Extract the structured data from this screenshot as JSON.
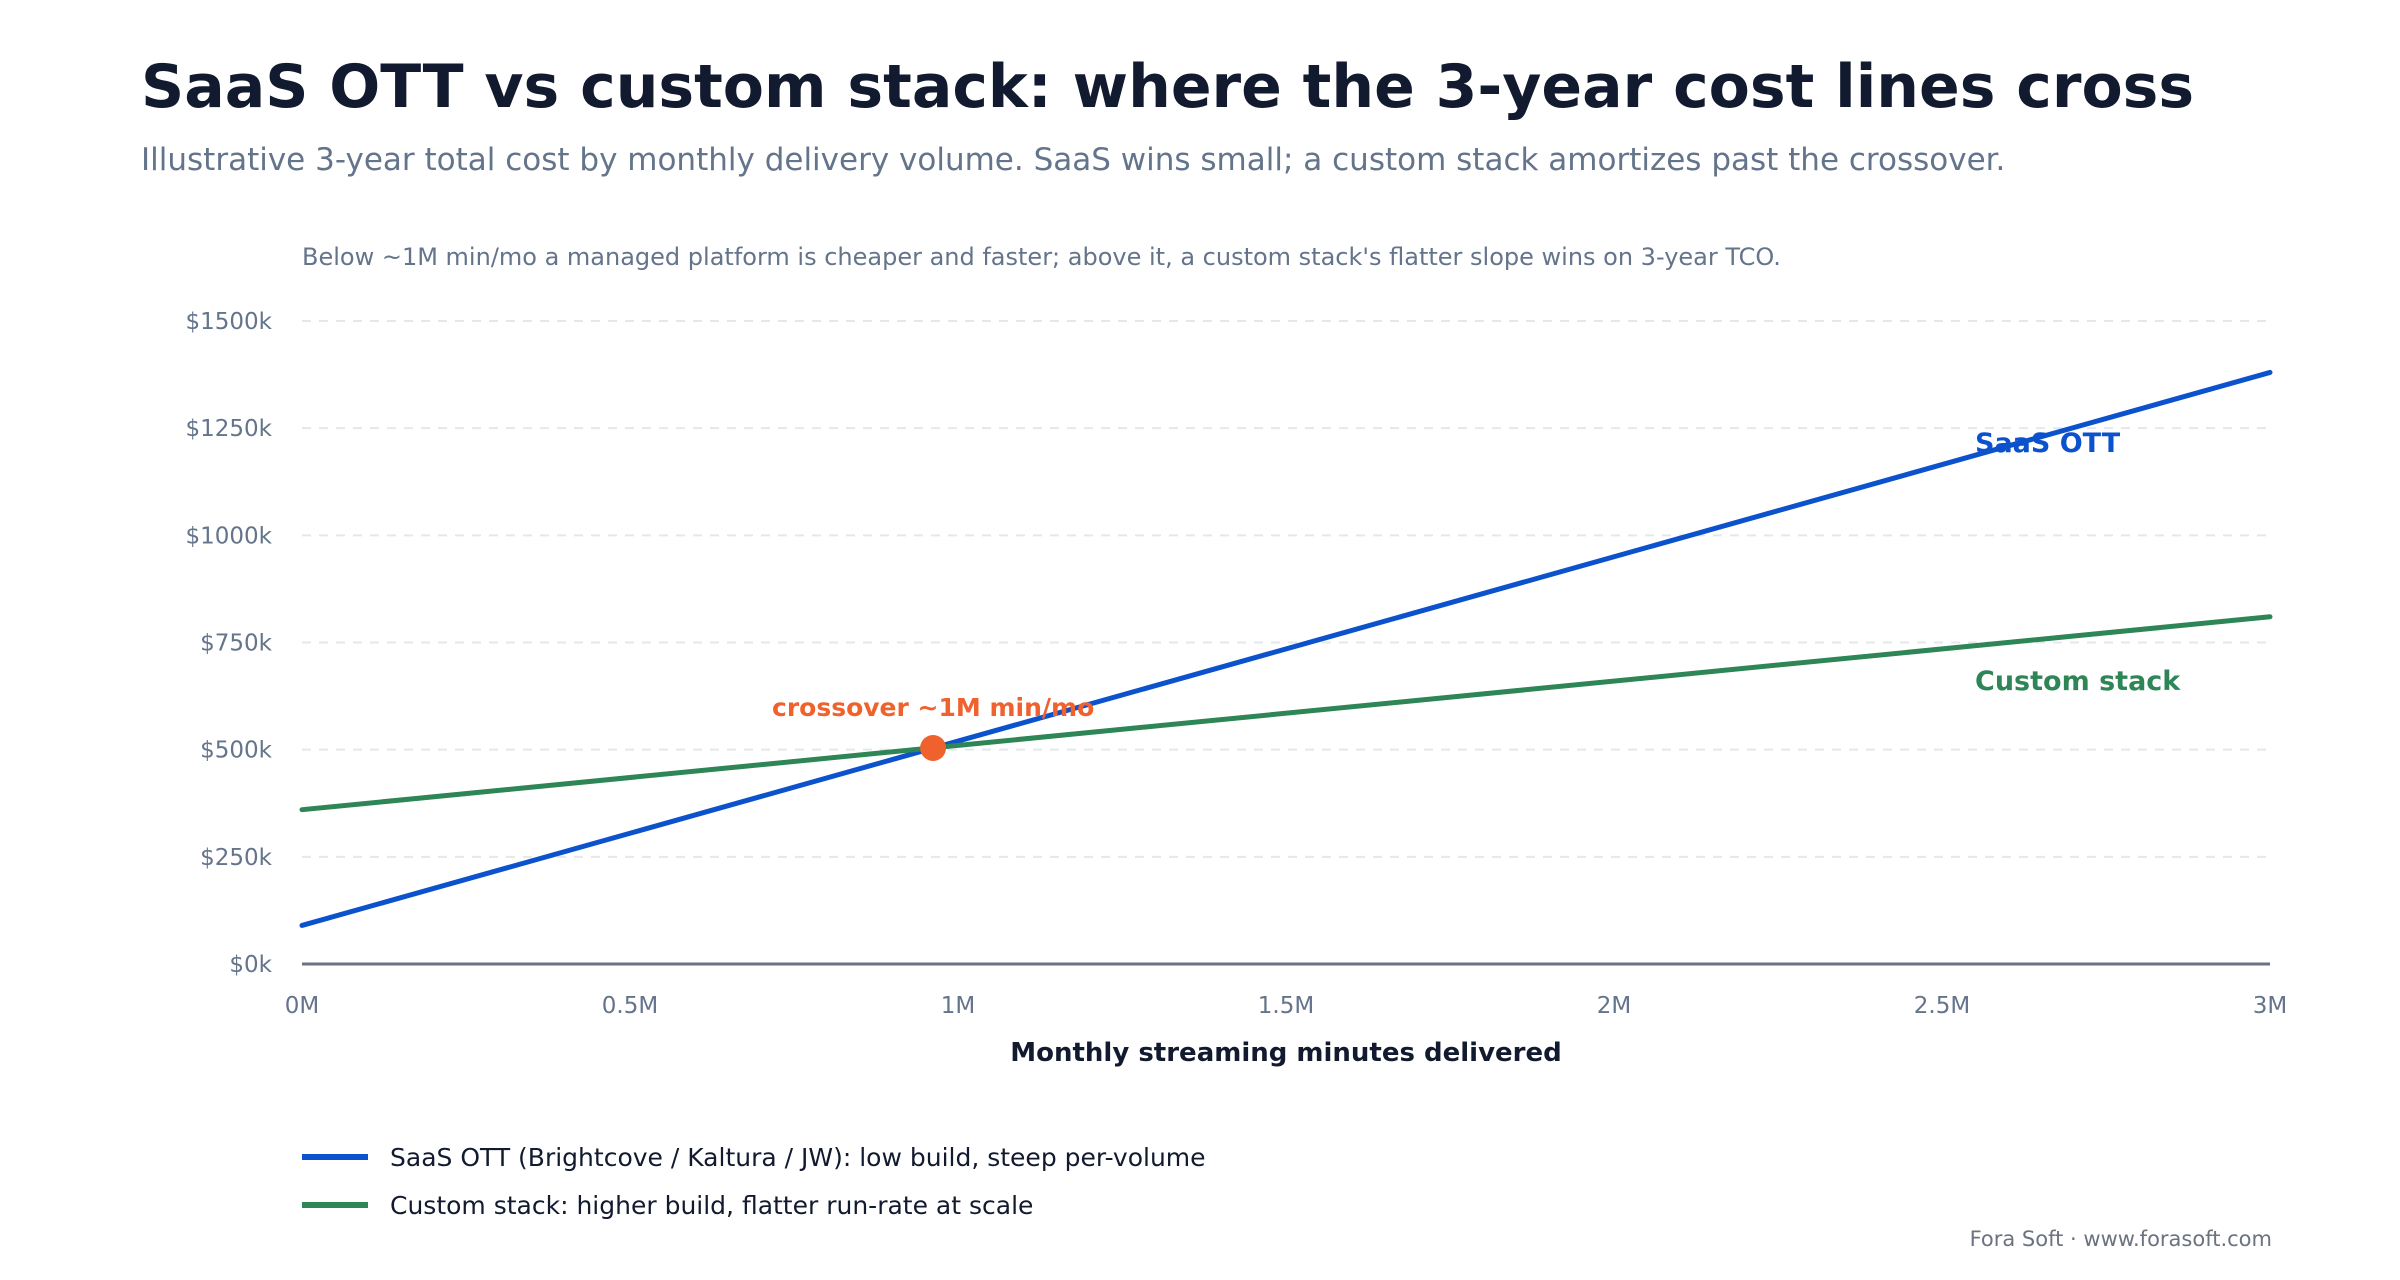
{
  "chart_data": {
    "type": "line",
    "title": "SaaS OTT vs custom stack: where the 3-year cost lines cross",
    "subtitle": "Illustrative 3-year total cost by monthly delivery volume. SaaS wins small; a custom stack amortizes past the crossover.",
    "note": "Below ~1M min/mo a managed platform is cheaper and faster; above it, a custom stack's flatter slope wins on 3-year TCO.",
    "xlabel": "Monthly streaming minutes delivered",
    "ylabel": "",
    "xlim": [
      0,
      3000000
    ],
    "ylim": [
      0,
      1500
    ],
    "x_ticks": [
      {
        "value": 0,
        "label": "0M"
      },
      {
        "value": 500000,
        "label": "0.5M"
      },
      {
        "value": 1000000,
        "label": "1M"
      },
      {
        "value": 1500000,
        "label": "1.5M"
      },
      {
        "value": 2000000,
        "label": "2M"
      },
      {
        "value": 2500000,
        "label": "2.5M"
      },
      {
        "value": 3000000,
        "label": "3M"
      }
    ],
    "y_ticks": [
      {
        "value": 0,
        "label": "$0k"
      },
      {
        "value": 250,
        "label": "$250k"
      },
      {
        "value": 500,
        "label": "$500k"
      },
      {
        "value": 750,
        "label": "$750k"
      },
      {
        "value": 1000,
        "label": "$1000k"
      },
      {
        "value": 1250,
        "label": "$1250k"
      },
      {
        "value": 1500,
        "label": "$1500k"
      }
    ],
    "grid": true,
    "series": [
      {
        "name": "SaaS OTT",
        "legend": "SaaS OTT (Brightcove / Kaltura / JW): low build, steep per-volume",
        "color": "#0b52cc",
        "x": [
          0,
          3000000
        ],
        "y": [
          90,
          1380
        ]
      },
      {
        "name": "Custom stack",
        "legend": "Custom stack: higher build, flatter run-rate at scale",
        "color": "#2e8555",
        "x": [
          0,
          3000000
        ],
        "y": [
          360,
          810
        ]
      }
    ],
    "annotation": {
      "label": "crossover ~1M min/mo",
      "x": 962000,
      "y": 504,
      "color": "#f0622d"
    },
    "legend_position": "bottom-left",
    "credit": "Fora Soft · www.forasoft.com"
  }
}
